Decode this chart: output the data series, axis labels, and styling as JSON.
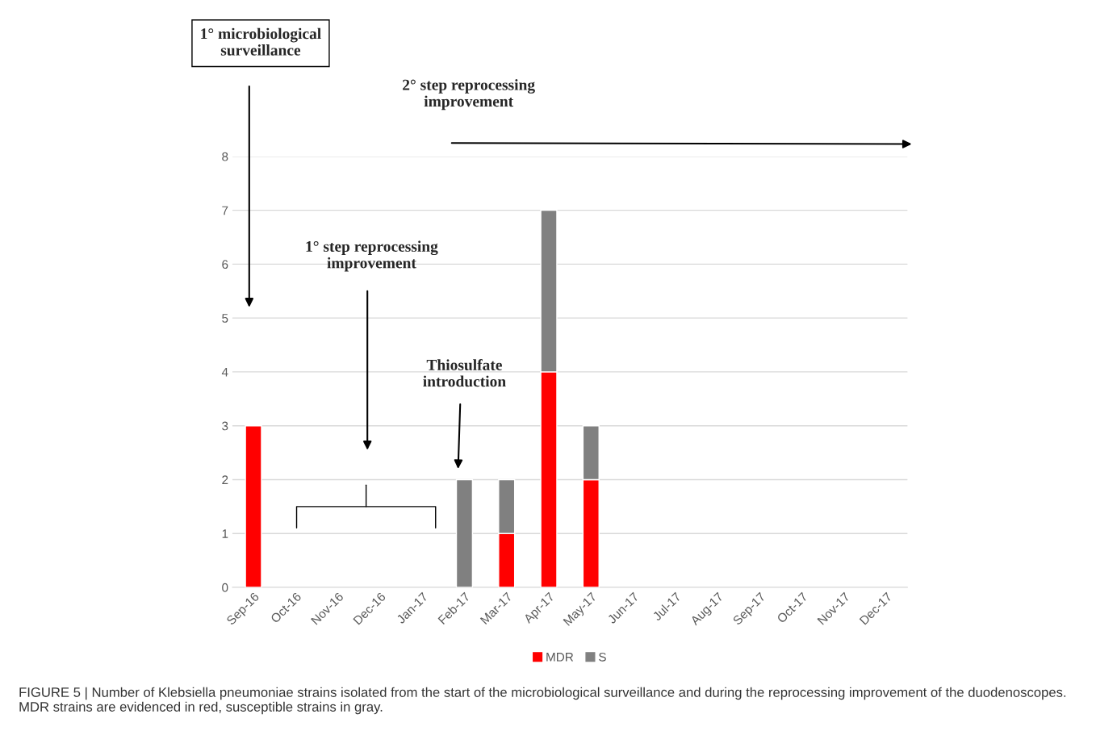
{
  "chart_data": {
    "type": "bar",
    "stacked": true,
    "categories": [
      "Sep-16",
      "Oct-16",
      "Nov-16",
      "Dec-16",
      "Jan-17",
      "Feb-17",
      "Mar-17",
      "Apr-17",
      "May-17",
      "Jun-17",
      "Jul-17",
      "Aug-17",
      "Sep-17",
      "Oct-17",
      "Nov-17",
      "Dec-17"
    ],
    "series": [
      {
        "name": "MDR",
        "color": "#ff0000",
        "values": [
          3,
          0,
          0,
          0,
          0,
          0,
          1,
          4,
          2,
          0,
          0,
          0,
          0,
          0,
          0,
          0
        ]
      },
      {
        "name": "S",
        "color": "#808080",
        "values": [
          0,
          0,
          0,
          0,
          0,
          2,
          1,
          3,
          1,
          0,
          0,
          0,
          0,
          0,
          0,
          0
        ]
      }
    ],
    "ylim": [
      0,
      8
    ],
    "yticks": [
      0,
      1,
      2,
      3,
      4,
      5,
      6,
      7,
      8
    ],
    "grid": "y",
    "legend": "bottom",
    "annotations": [
      "1° microbiological\nsurveillance",
      "1° step reprocessing\nimprovement",
      "Thiosulfate\nintroduction",
      "2° step reprocessing\nimprovement",
      "FIGURE 5 | Number of Klebsiella pneumoniae strains isolated from the start of the microbiological surveillance and during the reprocessing improvement of the duodenoscopes. MDR strains are evidenced in red, susceptible strains in gray."
    ]
  }
}
